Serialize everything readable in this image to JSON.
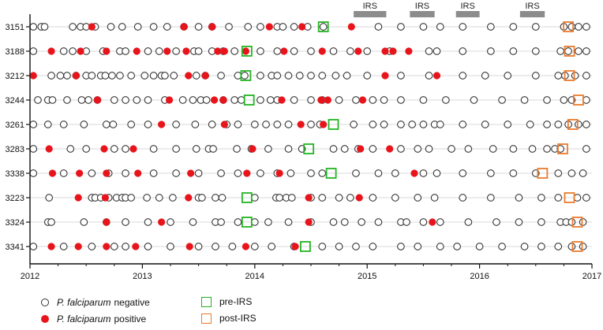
{
  "chart_data": {
    "type": "scatter",
    "x_axis": {
      "range": [
        2012,
        2017
      ],
      "ticks": [
        "2012",
        "2013",
        "2014",
        "2015",
        "2016",
        "2017"
      ]
    },
    "colors": {
      "negative": "#333333",
      "positive": "#e8141c",
      "pre_irs": "#22b422",
      "post_irs": "#ec7a2c",
      "irs_bar": "#8c8c8c",
      "guide": "#d9d9d9"
    },
    "irs_periods": [
      {
        "label": "IRS",
        "start": 2014.88,
        "end": 2015.17
      },
      {
        "label": "IRS",
        "start": 2015.38,
        "end": 2015.6
      },
      {
        "label": "IRS",
        "start": 2015.79,
        "end": 2016.0
      },
      {
        "label": "IRS",
        "start": 2016.36,
        "end": 2016.58
      }
    ],
    "legend": {
      "negative": {
        "italic": "P. falciparum",
        "rest": "negative"
      },
      "positive": {
        "italic": "P. falciparum",
        "rest": "positive"
      },
      "pre": "pre-IRS",
      "post": "post-IRS"
    },
    "series": [
      {
        "id": "3151",
        "negative": [
          2012.03,
          2012.1,
          2012.13,
          2012.38,
          2012.45,
          2012.5,
          2012.58,
          2012.72,
          2012.82,
          2012.96,
          2013.1,
          2013.22,
          2013.37,
          2013.5,
          2013.62,
          2013.77,
          2013.94,
          2014.05,
          2014.2,
          2014.25,
          2014.35,
          2014.47,
          2014.61,
          2015.1,
          2015.3,
          2015.5,
          2015.65,
          2015.85,
          2016.1,
          2016.3,
          2016.5,
          2016.75,
          2016.82,
          2016.88,
          2016.95
        ],
        "positive": [
          2012.55,
          2013.37,
          2013.62,
          2014.13,
          2014.42,
          2014.86
        ],
        "pre": [
          2014.61
        ],
        "post": [
          2016.79
        ]
      },
      {
        "id": "3188",
        "negative": [
          2012.03,
          2012.3,
          2012.38,
          2012.5,
          2012.65,
          2012.8,
          2012.85,
          2013.05,
          2013.15,
          2013.3,
          2013.46,
          2013.5,
          2013.62,
          2013.72,
          2013.82,
          2014.05,
          2014.2,
          2014.35,
          2014.5,
          2014.7,
          2014.85,
          2015.0,
          2015.2,
          2015.55,
          2015.62,
          2015.85,
          2016.1,
          2016.3,
          2016.5,
          2016.72,
          2016.79,
          2016.88,
          2016.95
        ],
        "positive": [
          2012.19,
          2012.45,
          2012.68,
          2012.95,
          2013.22,
          2013.39,
          2013.67,
          2013.73,
          2013.92,
          2014.26,
          2014.6,
          2014.92,
          2015.16,
          2015.23,
          2015.37
        ],
        "pre": [
          2013.93
        ],
        "post": [
          2016.8
        ]
      },
      {
        "id": "3212",
        "negative": [
          2012.19,
          2012.27,
          2012.33,
          2012.41,
          2012.5,
          2012.55,
          2012.63,
          2012.67,
          2012.73,
          2012.8,
          2012.9,
          2013.02,
          2013.1,
          2013.17,
          2013.2,
          2013.28,
          2013.48,
          2013.56,
          2013.7,
          2013.85,
          2013.91,
          2014.05,
          2014.15,
          2014.2,
          2014.3,
          2014.4,
          2014.5,
          2014.6,
          2014.72,
          2014.82,
          2015.0,
          2015.3,
          2015.55,
          2015.85,
          2016.05,
          2016.25,
          2016.5,
          2016.7,
          2016.76,
          2016.85,
          2016.95
        ],
        "positive": [
          2012.03,
          2012.41,
          2013.41,
          2013.56,
          2015.16,
          2015.62
        ],
        "pre": [
          2013.92
        ],
        "post": [
          2016.8
        ]
      },
      {
        "id": "3244",
        "negative": [
          2012.07,
          2012.16,
          2012.2,
          2012.33,
          2012.46,
          2012.52,
          2012.6,
          2012.75,
          2012.85,
          2012.95,
          2013.05,
          2013.2,
          2013.36,
          2013.45,
          2013.52,
          2013.57,
          2013.72,
          2013.82,
          2013.88,
          2014.05,
          2014.14,
          2014.2,
          2014.35,
          2014.5,
          2014.6,
          2014.75,
          2014.9,
          2015.05,
          2015.15,
          2015.3,
          2015.5,
          2015.7,
          2015.95,
          2016.2,
          2016.4,
          2016.6,
          2016.75,
          2016.82,
          2016.95
        ],
        "positive": [
          2012.6,
          2013.24,
          2013.64,
          2013.72,
          2014.24,
          2014.59,
          2014.65,
          2014.96
        ],
        "pre": [
          2013.95
        ],
        "post": [
          2016.88
        ]
      },
      {
        "id": "3261",
        "negative": [
          2012.03,
          2012.16,
          2012.3,
          2012.48,
          2012.68,
          2012.74,
          2012.9,
          2013.05,
          2013.3,
          2013.47,
          2013.62,
          2013.75,
          2013.85,
          2014.0,
          2014.1,
          2014.2,
          2014.3,
          2014.5,
          2014.58,
          2014.88,
          2015.05,
          2015.15,
          2015.3,
          2015.4,
          2015.5,
          2015.6,
          2015.65,
          2015.85,
          2016.05,
          2016.25,
          2016.45,
          2016.6,
          2016.7,
          2016.79,
          2016.88,
          2016.95
        ],
        "positive": [
          2013.17,
          2013.73,
          2014.41,
          2014.61
        ],
        "pre": [
          2014.7
        ],
        "post": [
          2016.83
        ]
      },
      {
        "id": "3283",
        "negative": [
          2012.03,
          2012.36,
          2012.5,
          2012.75,
          2012.85,
          2013.1,
          2013.3,
          2013.48,
          2013.59,
          2013.63,
          2013.84,
          2013.97,
          2014.12,
          2014.3,
          2014.42,
          2014.7,
          2014.8,
          2014.92,
          2015.05,
          2015.3,
          2015.45,
          2015.55,
          2015.75,
          2015.9,
          2016.12,
          2016.3,
          2016.47,
          2016.6,
          2016.67,
          2016.72,
          2016.95
        ],
        "positive": [
          2012.17,
          2012.66,
          2012.92,
          2013.98,
          2014.94,
          2015.2
        ],
        "pre": [
          2014.48
        ],
        "post": [
          2016.74
        ]
      },
      {
        "id": "3338",
        "negative": [
          2012.03,
          2012.3,
          2012.55,
          2012.7,
          2012.85,
          2013.1,
          2013.3,
          2013.5,
          2013.7,
          2013.85,
          2014.05,
          2014.2,
          2014.32,
          2014.5,
          2014.6,
          2014.9,
          2015.1,
          2015.25,
          2015.5,
          2015.62,
          2015.85,
          2016.1,
          2016.3,
          2016.5,
          2016.7,
          2016.82,
          2016.92
        ],
        "positive": [
          2012.2,
          2012.44,
          2012.68,
          2012.96,
          2013.43,
          2013.93,
          2014.22,
          2015.42
        ],
        "pre": [
          2014.68
        ],
        "post": [
          2016.56
        ]
      },
      {
        "id": "3223",
        "negative": [
          2012.17,
          2012.55,
          2012.58,
          2012.63,
          2012.7,
          2012.77,
          2012.82,
          2012.85,
          2012.9,
          2013.04,
          2013.15,
          2013.27,
          2013.5,
          2013.53,
          2013.65,
          2013.71,
          2014.0,
          2014.19,
          2014.22,
          2014.28,
          2014.33,
          2014.5,
          2014.6,
          2014.75,
          2014.85,
          2015.05,
          2015.25,
          2015.45,
          2015.6,
          2015.85,
          2016.1,
          2016.35,
          2016.55,
          2016.7,
          2016.87,
          2016.95
        ],
        "positive": [
          2012.43,
          2012.67,
          2013.41,
          2014.48,
          2014.93
        ],
        "pre": [
          2013.93
        ],
        "post": [
          2016.8
        ]
      },
      {
        "id": "3324",
        "negative": [
          2012.16,
          2012.19,
          2012.48,
          2012.68,
          2012.85,
          2013.05,
          2013.25,
          2013.45,
          2013.65,
          2013.7,
          2013.85,
          2014.0,
          2014.12,
          2014.3,
          2014.5,
          2014.7,
          2014.8,
          2014.95,
          2015.1,
          2015.3,
          2015.35,
          2015.5,
          2015.65,
          2015.9,
          2016.15,
          2016.35,
          2016.55,
          2016.72,
          2016.77,
          2016.82,
          2016.92
        ],
        "positive": [
          2012.68,
          2013.17,
          2014.48,
          2015.58
        ],
        "pre": [
          2013.93
        ],
        "post": [
          2016.87
        ]
      },
      {
        "id": "3341",
        "negative": [
          2012.03,
          2012.3,
          2012.55,
          2012.75,
          2012.85,
          2013.05,
          2013.25,
          2013.5,
          2013.65,
          2013.8,
          2014.0,
          2014.15,
          2014.35,
          2014.6,
          2014.75,
          2014.9,
          2015.05,
          2015.3,
          2015.45,
          2015.65,
          2015.8,
          2016.0,
          2016.2,
          2016.4,
          2016.55,
          2016.7,
          2016.82,
          2016.92
        ],
        "positive": [
          2012.19,
          2012.43,
          2012.68,
          2012.94,
          2013.42,
          2013.92,
          2014.36
        ],
        "pre": [
          2014.45
        ],
        "post": [
          2016.87
        ]
      }
    ]
  }
}
